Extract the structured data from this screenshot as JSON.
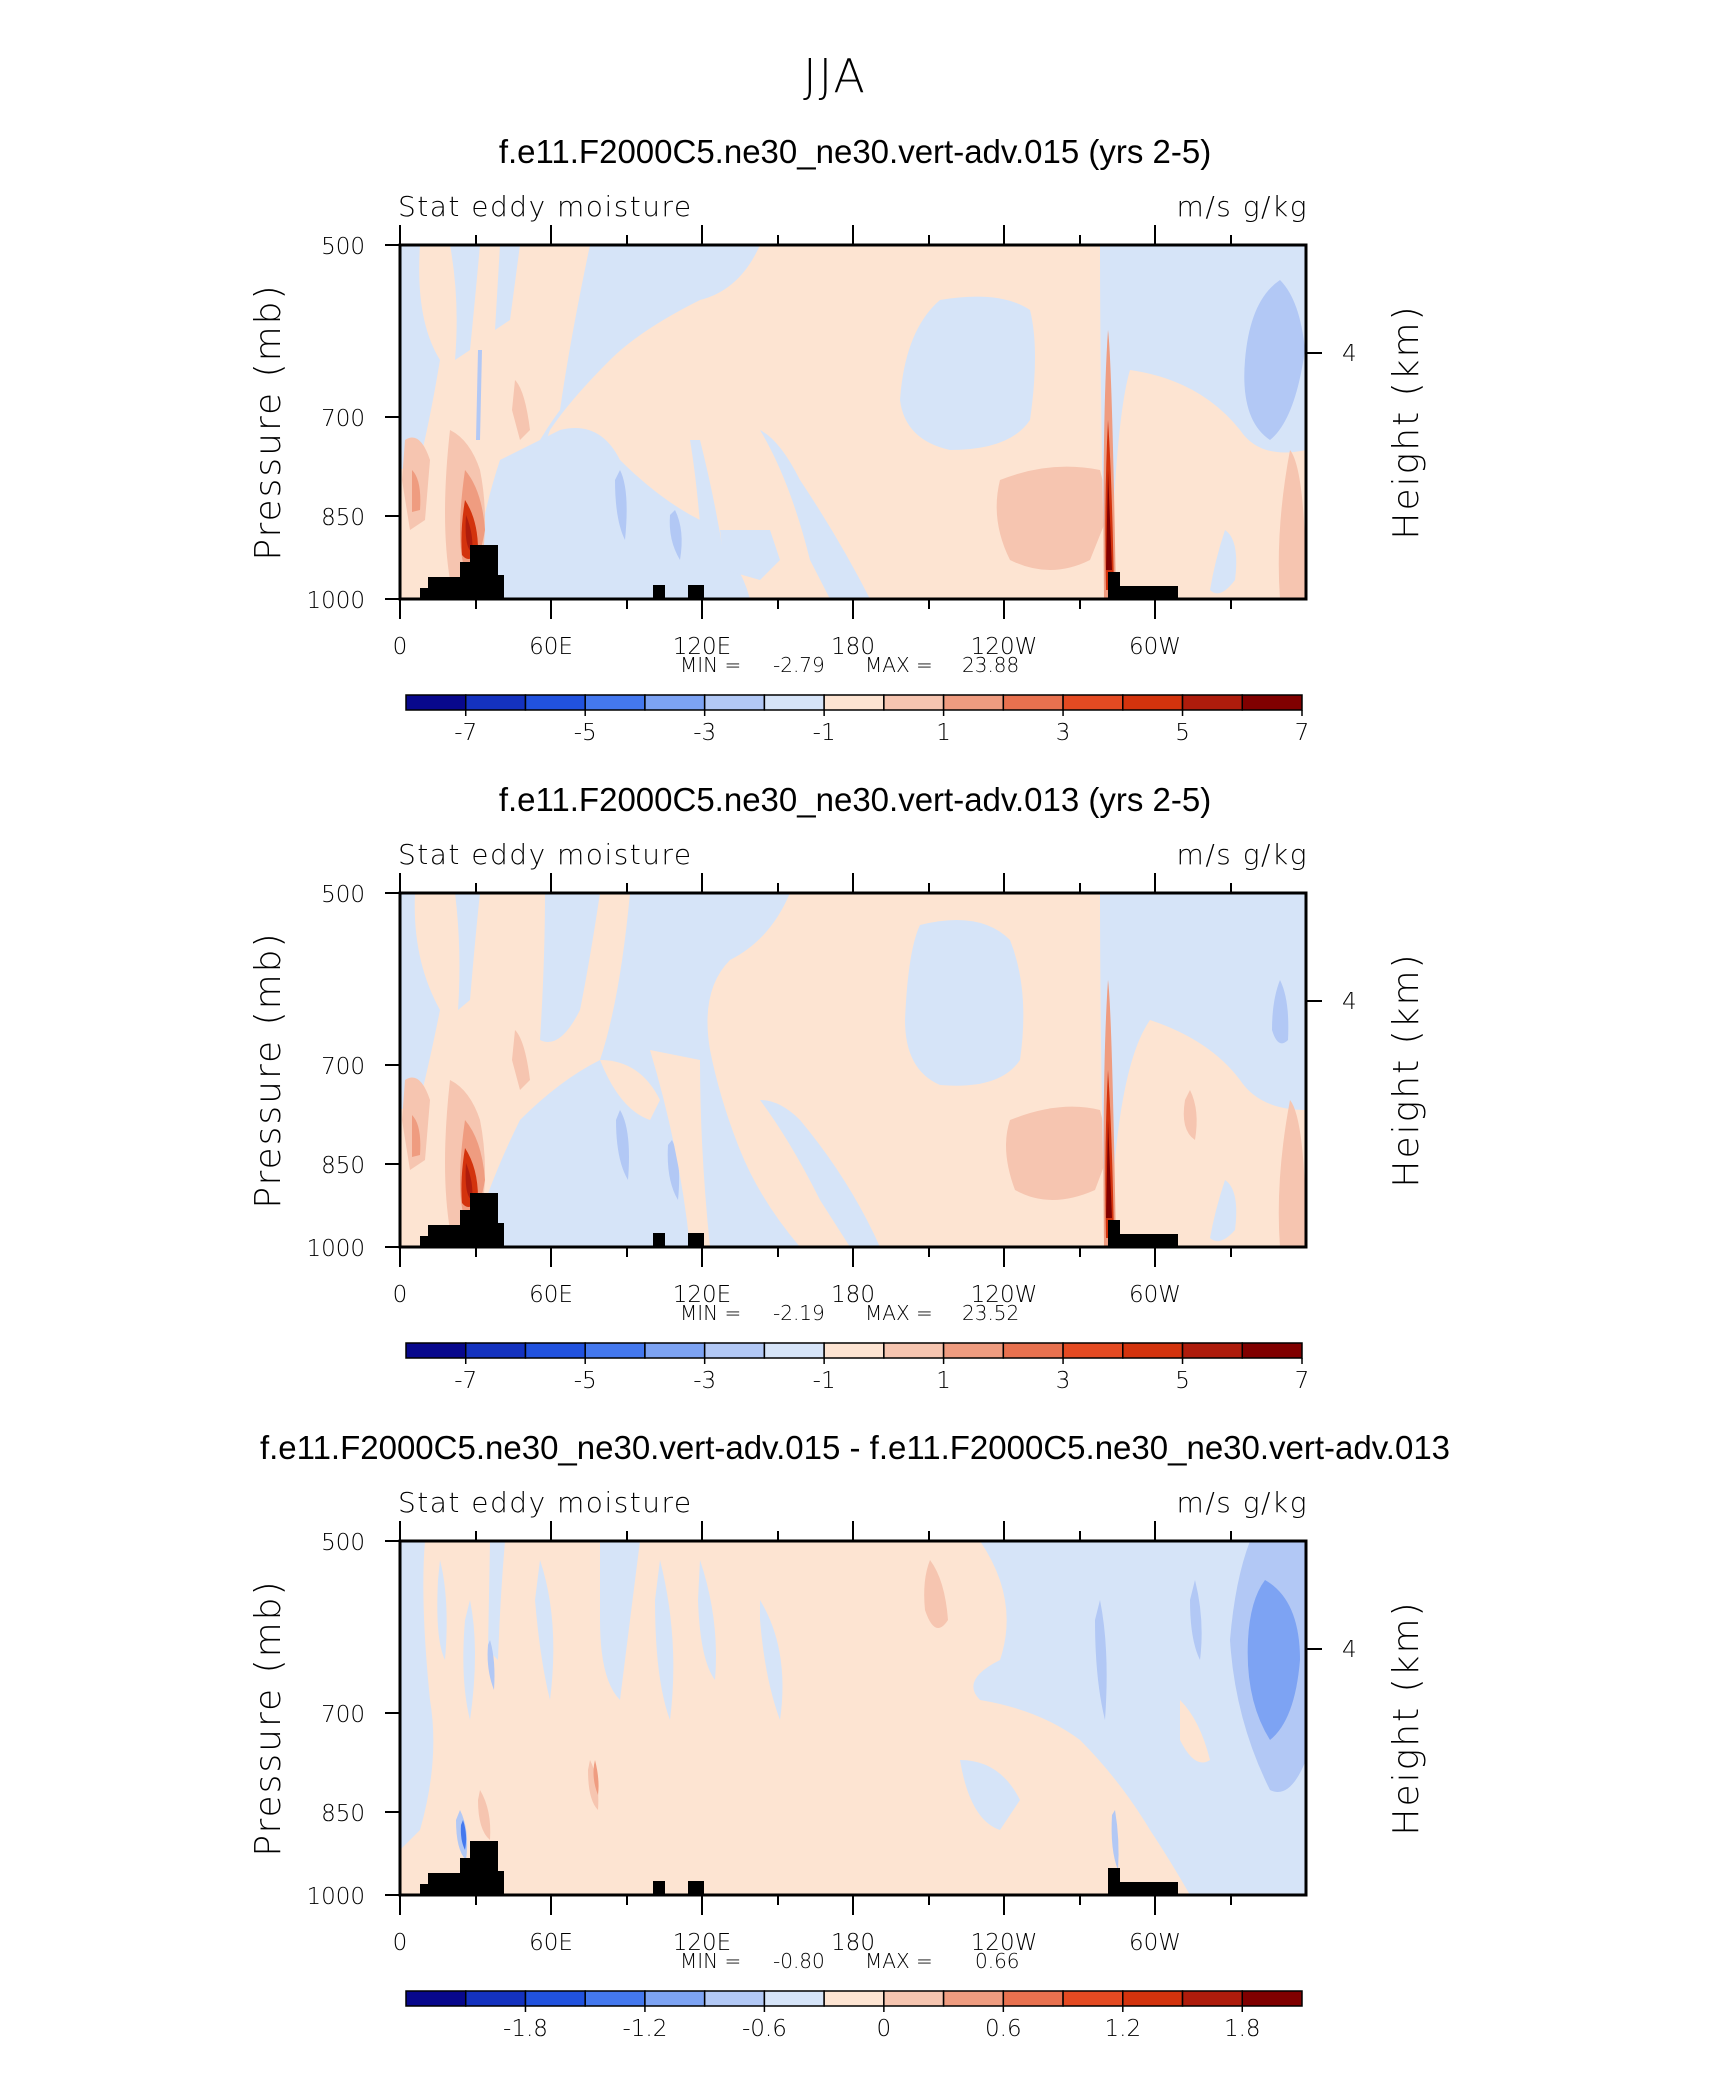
{
  "page": {
    "title": "JJA"
  },
  "chart_data": [
    {
      "type": "contour",
      "title": "f.e11.F2000C5.ne30_ne30.vert-adv.015 (yrs 2-5)",
      "left_label": "Stat eddy moisture",
      "right_label": "m/s g/kg",
      "ylabel": "Pressure (mb)",
      "ylabel_right": "Height (km)",
      "x_ticks": [
        "0",
        "60E",
        "120E",
        "180",
        "120W",
        "60W"
      ],
      "y_ticks": [
        "500",
        "700",
        "850",
        "1000"
      ],
      "right_ticks": [
        "4"
      ],
      "min_label": "MIN =",
      "min_value": "-2.79",
      "max_label": "MAX =",
      "max_value": "23.88",
      "colorbar": {
        "labels": [
          "-7",
          "-5",
          "-3",
          "-1",
          "1",
          "3",
          "5",
          "7"
        ],
        "colors": [
          "#08088c",
          "#1432bf",
          "#2152de",
          "#4478ee",
          "#7da3f3",
          "#b2c8f5",
          "#d6e4f8",
          "#fde4d2",
          "#f6c5b0",
          "#ef9c80",
          "#e8714f",
          "#e44a22",
          "#d3330d",
          "#ae1c0c",
          "#800000"
        ]
      }
    },
    {
      "type": "contour",
      "title": "f.e11.F2000C5.ne30_ne30.vert-adv.013 (yrs 2-5)",
      "left_label": "Stat eddy moisture",
      "right_label": "m/s g/kg",
      "ylabel": "Pressure (mb)",
      "ylabel_right": "Height (km)",
      "x_ticks": [
        "0",
        "60E",
        "120E",
        "180",
        "120W",
        "60W"
      ],
      "y_ticks": [
        "500",
        "700",
        "850",
        "1000"
      ],
      "right_ticks": [
        "4"
      ],
      "min_label": "MIN =",
      "min_value": "-2.19",
      "max_label": "MAX =",
      "max_value": "23.52",
      "colorbar": {
        "labels": [
          "-7",
          "-5",
          "-3",
          "-1",
          "1",
          "3",
          "5",
          "7"
        ],
        "colors": [
          "#08088c",
          "#1432bf",
          "#2152de",
          "#4478ee",
          "#7da3f3",
          "#b2c8f5",
          "#d6e4f8",
          "#fde4d2",
          "#f6c5b0",
          "#ef9c80",
          "#e8714f",
          "#e44a22",
          "#d3330d",
          "#ae1c0c",
          "#800000"
        ]
      }
    },
    {
      "type": "contour",
      "title": "f.e11.F2000C5.ne30_ne30.vert-adv.015 - f.e11.F2000C5.ne30_ne30.vert-adv.013",
      "left_label": "Stat eddy moisture",
      "right_label": "m/s g/kg",
      "ylabel": "Pressure (mb)",
      "ylabel_right": "Height (km)",
      "x_ticks": [
        "0",
        "60E",
        "120E",
        "180",
        "120W",
        "60W"
      ],
      "y_ticks": [
        "500",
        "700",
        "850",
        "1000"
      ],
      "right_ticks": [
        "4"
      ],
      "min_label": "MIN =",
      "min_value": "-0.80",
      "max_label": "MAX =",
      "max_value": "0.66",
      "colorbar": {
        "labels": [
          "-1.8",
          "-1.2",
          "-0.6",
          "0",
          "0.6",
          "1.2",
          "1.8"
        ],
        "colors": [
          "#08088c",
          "#1432bf",
          "#2152de",
          "#4478ee",
          "#7da3f3",
          "#b2c8f5",
          "#d6e4f8",
          "#fde4d2",
          "#f6c5b0",
          "#ef9c80",
          "#e8714f",
          "#e44a22",
          "#d3330d",
          "#ae1c0c",
          "#800000"
        ]
      }
    }
  ]
}
